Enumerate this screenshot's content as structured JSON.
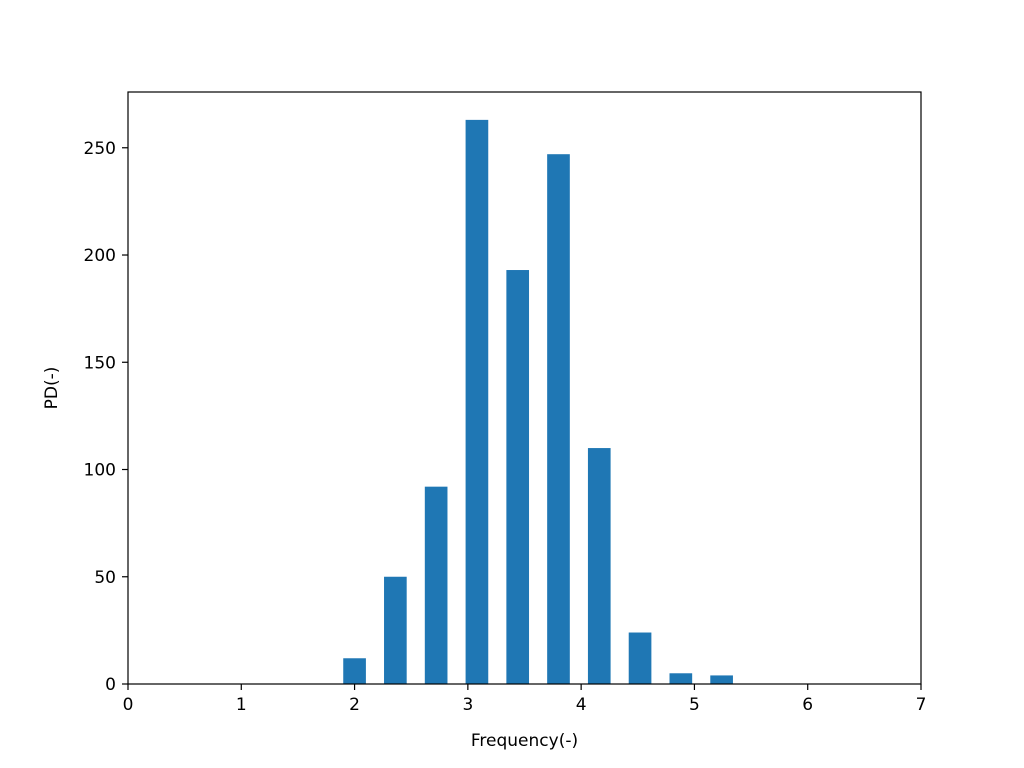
{
  "chart_data": {
    "type": "bar",
    "title": "",
    "xlabel": "Frequency(-)",
    "ylabel": "PD(-)",
    "xlim": [
      0,
      7
    ],
    "ylim": [
      0,
      276
    ],
    "xticks": [
      0,
      1,
      2,
      3,
      4,
      5,
      6,
      7
    ],
    "yticks": [
      0,
      50,
      100,
      150,
      200,
      250
    ],
    "grid": false,
    "legend": "none",
    "bar_color": "#1f77b4",
    "bar_width": 0.2,
    "series": [
      {
        "x": [
          2.0,
          2.36,
          2.72,
          3.08,
          3.44,
          3.8,
          4.16,
          4.52,
          4.88,
          5.24
        ],
        "values": [
          12,
          50,
          92,
          263,
          193,
          247,
          110,
          24,
          5,
          4
        ]
      }
    ]
  }
}
